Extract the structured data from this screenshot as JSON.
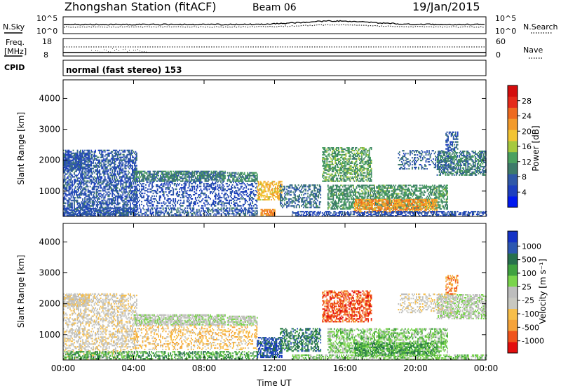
{
  "header": {
    "station": "Zhongshan Station (fitACF)",
    "beam": "Beam 06",
    "date": "19/Jan/2015"
  },
  "top_panels": {
    "nsky_label": "N.Sky",
    "nsky_ticks": [
      "10^5",
      "10^0"
    ],
    "nsearch_label": "N.Search",
    "right_ticks_top": [
      "10^5",
      "10^0"
    ],
    "freq_label_1": "Freq.",
    "freq_label_2": "[MHz]",
    "freq_ticks": [
      "18",
      "8"
    ],
    "nave_label": "Nave",
    "nave_ticks": [
      "60",
      "0"
    ],
    "cpid_label": "CPID",
    "cpid_text": "normal (fast stereo) 153"
  },
  "colors": {
    "power": [
      "#0018f0",
      "#1d3fbf",
      "#2f58a8",
      "#3d7a6a",
      "#4aa060",
      "#a6c93e",
      "#f2c433",
      "#f29a2b",
      "#ee6a1f",
      "#e52a1a",
      "#d40d0d"
    ],
    "velocity": [
      "#e30e0e",
      "#f0531b",
      "#f5a33a",
      "#f7be4a",
      "#c8c8c0",
      "#bdbdbd",
      "#7ad44c",
      "#3fa13f",
      "#27704d",
      "#2c57b0",
      "#1533c6"
    ]
  },
  "chart_data": [
    {
      "type": "heatmap",
      "title": "Power",
      "ylabel": "Slant Range [km]",
      "xlabel": "",
      "x_ticks": [
        "00:00",
        "04:00",
        "08:00",
        "12:00",
        "16:00",
        "20:00",
        "00:00"
      ],
      "y_ticks": [
        1000,
        2000,
        3000,
        4000
      ],
      "ylim": [
        180,
        4600
      ],
      "xlim_hours": [
        0,
        24
      ],
      "colorbar": {
        "label": "Power [dB]",
        "ticks": [
          4,
          8,
          12,
          16,
          20,
          24,
          28
        ],
        "range": [
          0,
          32
        ]
      },
      "regions": [
        {
          "t0": 0.0,
          "t1": 4.2,
          "r0": 180,
          "r1": 2300,
          "level": 7,
          "density": 0.55
        },
        {
          "t0": 0.0,
          "t1": 1.5,
          "r0": 1700,
          "r1": 2200,
          "level": 7,
          "density": 0.6
        },
        {
          "t0": 4.0,
          "t1": 9.2,
          "r0": 1300,
          "r1": 1650,
          "level": 10,
          "density": 0.75
        },
        {
          "t0": 4.0,
          "t1": 11.0,
          "r0": 500,
          "r1": 1300,
          "level": 6,
          "density": 0.35
        },
        {
          "t0": 0.0,
          "t1": 11.0,
          "r0": 200,
          "r1": 450,
          "level": 7,
          "density": 0.5
        },
        {
          "t0": 9.3,
          "t1": 11.0,
          "r0": 1300,
          "r1": 1600,
          "level": 11,
          "density": 0.7
        },
        {
          "t0": 11.0,
          "t1": 12.4,
          "r0": 700,
          "r1": 1300,
          "level": 20,
          "density": 0.6
        },
        {
          "t0": 11.2,
          "t1": 12.0,
          "r0": 200,
          "r1": 400,
          "level": 23,
          "density": 0.7
        },
        {
          "t0": 12.3,
          "t1": 14.6,
          "r0": 450,
          "r1": 1200,
          "level": 9,
          "density": 0.45
        },
        {
          "t0": 14.7,
          "t1": 17.5,
          "r0": 1300,
          "r1": 2400,
          "level": 13,
          "density": 0.55
        },
        {
          "t0": 15.0,
          "t1": 21.8,
          "r0": 400,
          "r1": 1200,
          "level": 12,
          "density": 0.6
        },
        {
          "t0": 16.5,
          "t1": 21.2,
          "r0": 300,
          "r1": 750,
          "level": 22,
          "density": 0.65
        },
        {
          "t0": 13.0,
          "t1": 24.0,
          "r0": 180,
          "r1": 330,
          "level": 6,
          "density": 0.55
        },
        {
          "t0": 21.2,
          "t1": 24.0,
          "r0": 1500,
          "r1": 2300,
          "level": 10,
          "density": 0.6
        },
        {
          "t0": 21.7,
          "t1": 22.4,
          "r0": 2300,
          "r1": 2900,
          "level": 7,
          "density": 0.5
        },
        {
          "t0": 19.0,
          "t1": 22.0,
          "r0": 1700,
          "r1": 2300,
          "level": 8,
          "density": 0.3
        }
      ]
    },
    {
      "type": "heatmap",
      "title": "Velocity",
      "ylabel": "Slant Range [km]",
      "xlabel": "Time UT",
      "x_ticks": [
        "00:00",
        "04:00",
        "08:00",
        "12:00",
        "16:00",
        "20:00",
        "00:00"
      ],
      "y_ticks": [
        1000,
        2000,
        3000,
        4000
      ],
      "ylim": [
        180,
        4600
      ],
      "xlim_hours": [
        0,
        24
      ],
      "colorbar": {
        "label": "Velocity [m s⁻¹]",
        "ticks": [
          "1000",
          "500",
          "100",
          "25",
          "-25",
          "-100",
          "-500",
          "-1000"
        ]
      },
      "regions": [
        {
          "t0": 0.0,
          "t1": 4.2,
          "r0": 180,
          "r1": 2300,
          "level": 4,
          "density": 0.4
        },
        {
          "t0": 0.0,
          "t1": 1.5,
          "r0": 1900,
          "r1": 2300,
          "level": 4,
          "density": 0.7
        },
        {
          "t0": 4.0,
          "t1": 9.2,
          "r0": 1300,
          "r1": 1650,
          "level": 5,
          "density": 0.75
        },
        {
          "t0": 4.0,
          "t1": 11.0,
          "r0": 500,
          "r1": 1300,
          "level": 3,
          "density": 0.3
        },
        {
          "t0": 0.0,
          "t1": 11.0,
          "r0": 200,
          "r1": 450,
          "level": 7,
          "density": 0.5
        },
        {
          "t0": 9.3,
          "t1": 11.0,
          "r0": 1300,
          "r1": 1600,
          "level": 5,
          "density": 0.7
        },
        {
          "t0": 11.0,
          "t1": 12.4,
          "r0": 250,
          "r1": 900,
          "level": 9,
          "density": 0.65
        },
        {
          "t0": 12.3,
          "t1": 14.6,
          "r0": 450,
          "r1": 1200,
          "level": 8,
          "density": 0.5
        },
        {
          "t0": 14.7,
          "t1": 17.5,
          "r0": 1400,
          "r1": 2400,
          "level": 1,
          "density": 0.55
        },
        {
          "t0": 15.0,
          "t1": 21.8,
          "r0": 400,
          "r1": 1200,
          "level": 6,
          "density": 0.55
        },
        {
          "t0": 16.5,
          "t1": 21.2,
          "r0": 300,
          "r1": 750,
          "level": 7,
          "density": 0.6
        },
        {
          "t0": 13.0,
          "t1": 24.0,
          "r0": 180,
          "r1": 330,
          "level": 6,
          "density": 0.55
        },
        {
          "t0": 21.2,
          "t1": 24.0,
          "r0": 1500,
          "r1": 2300,
          "level": 5,
          "density": 0.6
        },
        {
          "t0": 21.7,
          "t1": 22.4,
          "r0": 2300,
          "r1": 2900,
          "level": 2,
          "density": 0.45
        },
        {
          "t0": 19.0,
          "t1": 22.0,
          "r0": 1700,
          "r1": 2300,
          "level": 4,
          "density": 0.3
        }
      ]
    }
  ]
}
